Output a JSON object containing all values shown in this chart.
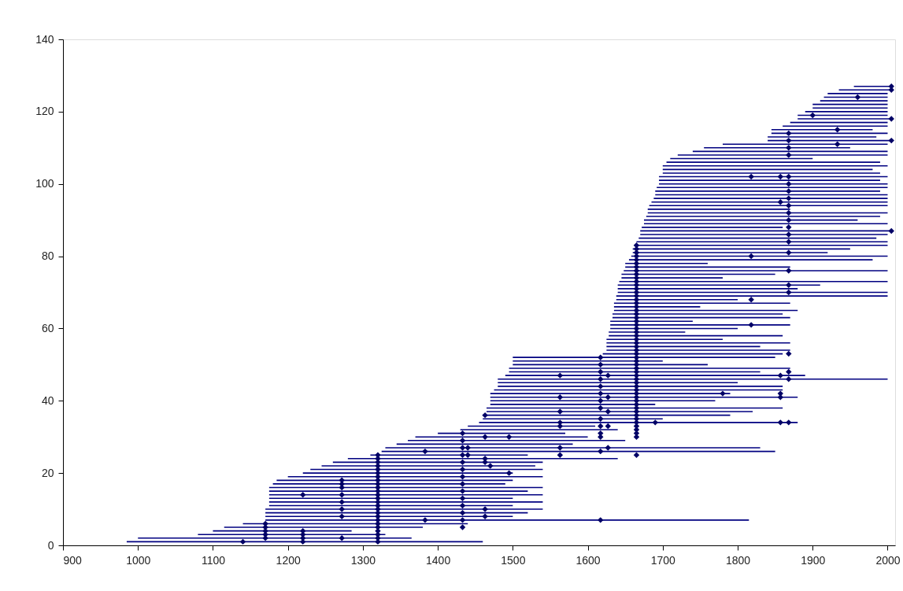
{
  "chart_data": {
    "type": "line",
    "xlim": [
      900,
      2010
    ],
    "ylim": [
      0,
      140
    ],
    "xticks": [
      900,
      1000,
      1100,
      1200,
      1300,
      1400,
      1500,
      1600,
      1700,
      1800,
      1900,
      2000
    ],
    "yticks": [
      0,
      20,
      40,
      60,
      80,
      100,
      120,
      140
    ],
    "grid": false,
    "legend": false,
    "line_style": "solid",
    "series": [
      {
        "color": "#000080",
        "x": [
          985,
          1460
        ],
        "values": [
          1,
          1
        ]
      },
      {
        "color": "#000080",
        "x": [
          1000,
          1365
        ],
        "values": [
          2,
          2
        ]
      },
      {
        "color": "#000080",
        "x": [
          1080,
          1330
        ],
        "values": [
          3,
          3
        ]
      },
      {
        "color": "#000080",
        "x": [
          1100,
          1285
        ],
        "values": [
          4,
          4
        ]
      },
      {
        "color": "#000080",
        "x": [
          1115,
          1380
        ],
        "values": [
          5,
          5
        ]
      },
      {
        "color": "#000080",
        "x": [
          1140,
          1440
        ],
        "values": [
          6,
          6
        ]
      },
      {
        "color": "#000080",
        "x": [
          1170,
          1815
        ],
        "values": [
          7,
          7
        ]
      },
      {
        "color": "#000080",
        "x": [
          1170,
          1500
        ],
        "values": [
          8,
          8
        ]
      },
      {
        "color": "#000080",
        "x": [
          1170,
          1520
        ],
        "values": [
          9,
          9
        ]
      },
      {
        "color": "#000080",
        "x": [
          1170,
          1540
        ],
        "values": [
          10,
          10
        ]
      },
      {
        "color": "#000080",
        "x": [
          1175,
          1500
        ],
        "values": [
          11,
          11
        ]
      },
      {
        "color": "#000080",
        "x": [
          1175,
          1540
        ],
        "values": [
          12,
          12
        ]
      },
      {
        "color": "#000080",
        "x": [
          1175,
          1500
        ],
        "values": [
          13,
          13
        ]
      },
      {
        "color": "#000080",
        "x": [
          1175,
          1540
        ],
        "values": [
          14,
          14
        ]
      },
      {
        "color": "#000080",
        "x": [
          1175,
          1520
        ],
        "values": [
          15,
          15
        ]
      },
      {
        "color": "#000080",
        "x": [
          1175,
          1540
        ],
        "values": [
          16,
          16
        ]
      },
      {
        "color": "#000080",
        "x": [
          1180,
          1490
        ],
        "values": [
          17,
          17
        ]
      },
      {
        "color": "#000080",
        "x": [
          1185,
          1500
        ],
        "values": [
          18,
          18
        ]
      },
      {
        "color": "#000080",
        "x": [
          1200,
          1540
        ],
        "values": [
          19,
          19
        ]
      },
      {
        "color": "#000080",
        "x": [
          1220,
          1500
        ],
        "values": [
          20,
          20
        ]
      },
      {
        "color": "#000080",
        "x": [
          1230,
          1540
        ],
        "values": [
          21,
          21
        ]
      },
      {
        "color": "#000080",
        "x": [
          1245,
          1530
        ],
        "values": [
          22,
          22
        ]
      },
      {
        "color": "#000080",
        "x": [
          1260,
          1540
        ],
        "values": [
          23,
          23
        ]
      },
      {
        "color": "#000080",
        "x": [
          1280,
          1640
        ],
        "values": [
          24,
          24
        ]
      },
      {
        "color": "#000080",
        "x": [
          1310,
          1520
        ],
        "values": [
          25,
          25
        ]
      },
      {
        "color": "#000080",
        "x": [
          1325,
          1850
        ],
        "values": [
          26,
          26
        ]
      },
      {
        "color": "#000080",
        "x": [
          1330,
          1830
        ],
        "values": [
          27,
          27
        ]
      },
      {
        "color": "#000080",
        "x": [
          1345,
          1580
        ],
        "values": [
          28,
          28
        ]
      },
      {
        "color": "#000080",
        "x": [
          1360,
          1650
        ],
        "values": [
          29,
          29
        ]
      },
      {
        "color": "#000080",
        "x": [
          1370,
          1600
        ],
        "values": [
          30,
          30
        ]
      },
      {
        "color": "#000080",
        "x": [
          1400,
          1570
        ],
        "values": [
          31,
          31
        ]
      },
      {
        "color": "#000080",
        "x": [
          1430,
          1640
        ],
        "values": [
          32,
          32
        ]
      },
      {
        "color": "#000080",
        "x": [
          1440,
          1610
        ],
        "values": [
          33,
          33
        ]
      },
      {
        "color": "#000080",
        "x": [
          1455,
          1880
        ],
        "values": [
          34,
          34
        ]
      },
      {
        "color": "#000080",
        "x": [
          1460,
          1700
        ],
        "values": [
          35,
          35
        ]
      },
      {
        "color": "#000080",
        "x": [
          1460,
          1790
        ],
        "values": [
          36,
          36
        ]
      },
      {
        "color": "#000080",
        "x": [
          1465,
          1820
        ],
        "values": [
          37,
          37
        ]
      },
      {
        "color": "#000080",
        "x": [
          1465,
          1860
        ],
        "values": [
          38,
          38
        ]
      },
      {
        "color": "#000080",
        "x": [
          1470,
          1690
        ],
        "values": [
          39,
          39
        ]
      },
      {
        "color": "#000080",
        "x": [
          1470,
          1770
        ],
        "values": [
          40,
          40
        ]
      },
      {
        "color": "#000080",
        "x": [
          1470,
          1880
        ],
        "values": [
          41,
          41
        ]
      },
      {
        "color": "#000080",
        "x": [
          1470,
          1790
        ],
        "values": [
          42,
          42
        ]
      },
      {
        "color": "#000080",
        "x": [
          1475,
          1860
        ],
        "values": [
          43,
          43
        ]
      },
      {
        "color": "#000080",
        "x": [
          1480,
          1860
        ],
        "values": [
          44,
          44
        ]
      },
      {
        "color": "#000080",
        "x": [
          1480,
          1800
        ],
        "values": [
          45,
          45
        ]
      },
      {
        "color": "#000080",
        "x": [
          1480,
          2000
        ],
        "values": [
          46,
          46
        ]
      },
      {
        "color": "#000080",
        "x": [
          1490,
          1890
        ],
        "values": [
          47,
          47
        ]
      },
      {
        "color": "#000080",
        "x": [
          1495,
          1830
        ],
        "values": [
          48,
          48
        ]
      },
      {
        "color": "#000080",
        "x": [
          1495,
          1870
        ],
        "values": [
          49,
          49
        ]
      },
      {
        "color": "#000080",
        "x": [
          1500,
          1760
        ],
        "values": [
          50,
          50
        ]
      },
      {
        "color": "#000080",
        "x": [
          1500,
          1700
        ],
        "values": [
          51,
          51
        ]
      },
      {
        "color": "#000080",
        "x": [
          1500,
          1850
        ],
        "values": [
          52,
          52
        ]
      },
      {
        "color": "#000080",
        "x": [
          1620,
          1860
        ],
        "values": [
          53,
          53
        ]
      },
      {
        "color": "#000080",
        "x": [
          1625,
          1870
        ],
        "values": [
          54,
          54
        ]
      },
      {
        "color": "#000080",
        "x": [
          1625,
          1830
        ],
        "values": [
          55,
          55
        ]
      },
      {
        "color": "#000080",
        "x": [
          1625,
          1870
        ],
        "values": [
          56,
          56
        ]
      },
      {
        "color": "#000080",
        "x": [
          1625,
          1780
        ],
        "values": [
          57,
          57
        ]
      },
      {
        "color": "#000080",
        "x": [
          1628,
          1860
        ],
        "values": [
          58,
          58
        ]
      },
      {
        "color": "#000080",
        "x": [
          1628,
          1730
        ],
        "values": [
          59,
          59
        ]
      },
      {
        "color": "#000080",
        "x": [
          1630,
          1800
        ],
        "values": [
          60,
          60
        ]
      },
      {
        "color": "#000080",
        "x": [
          1630,
          1870
        ],
        "values": [
          61,
          61
        ]
      },
      {
        "color": "#000080",
        "x": [
          1630,
          1740
        ],
        "values": [
          62,
          62
        ]
      },
      {
        "color": "#000080",
        "x": [
          1633,
          1870
        ],
        "values": [
          63,
          63
        ]
      },
      {
        "color": "#000080",
        "x": [
          1633,
          1860
        ],
        "values": [
          64,
          64
        ]
      },
      {
        "color": "#000080",
        "x": [
          1635,
          1880
        ],
        "values": [
          65,
          65
        ]
      },
      {
        "color": "#000080",
        "x": [
          1635,
          1750
        ],
        "values": [
          66,
          66
        ]
      },
      {
        "color": "#000080",
        "x": [
          1635,
          1870
        ],
        "values": [
          67,
          67
        ]
      },
      {
        "color": "#000080",
        "x": [
          1638,
          1800
        ],
        "values": [
          68,
          68
        ]
      },
      {
        "color": "#000080",
        "x": [
          1638,
          2000
        ],
        "values": [
          69,
          69
        ]
      },
      {
        "color": "#000080",
        "x": [
          1640,
          2000
        ],
        "values": [
          70,
          70
        ]
      },
      {
        "color": "#000080",
        "x": [
          1640,
          1880
        ],
        "values": [
          71,
          71
        ]
      },
      {
        "color": "#000080",
        "x": [
          1640,
          1910
        ],
        "values": [
          72,
          72
        ]
      },
      {
        "color": "#000080",
        "x": [
          1642,
          2000
        ],
        "values": [
          73,
          73
        ]
      },
      {
        "color": "#000080",
        "x": [
          1645,
          1780
        ],
        "values": [
          74,
          74
        ]
      },
      {
        "color": "#000080",
        "x": [
          1645,
          1850
        ],
        "values": [
          75,
          75
        ]
      },
      {
        "color": "#000080",
        "x": [
          1648,
          2000
        ],
        "values": [
          76,
          76
        ]
      },
      {
        "color": "#000080",
        "x": [
          1650,
          1870
        ],
        "values": [
          77,
          77
        ]
      },
      {
        "color": "#000080",
        "x": [
          1650,
          1760
        ],
        "values": [
          78,
          78
        ]
      },
      {
        "color": "#000080",
        "x": [
          1655,
          1980
        ],
        "values": [
          79,
          79
        ]
      },
      {
        "color": "#000080",
        "x": [
          1658,
          2000
        ],
        "values": [
          80,
          80
        ]
      },
      {
        "color": "#000080",
        "x": [
          1660,
          1920
        ],
        "values": [
          81,
          81
        ]
      },
      {
        "color": "#000080",
        "x": [
          1660,
          1950
        ],
        "values": [
          82,
          82
        ]
      },
      {
        "color": "#000080",
        "x": [
          1662,
          2000
        ],
        "values": [
          83,
          83
        ]
      },
      {
        "color": "#000080",
        "x": [
          1665,
          2000
        ],
        "values": [
          84,
          84
        ]
      },
      {
        "color": "#000080",
        "x": [
          1668,
          1985
        ],
        "values": [
          85,
          85
        ]
      },
      {
        "color": "#000080",
        "x": [
          1670,
          2000
        ],
        "values": [
          86,
          86
        ]
      },
      {
        "color": "#000080",
        "x": [
          1670,
          2005
        ],
        "values": [
          87,
          87
        ]
      },
      {
        "color": "#000080",
        "x": [
          1672,
          1860
        ],
        "values": [
          88,
          88
        ]
      },
      {
        "color": "#000080",
        "x": [
          1675,
          2000
        ],
        "values": [
          89,
          89
        ]
      },
      {
        "color": "#000080",
        "x": [
          1675,
          1960
        ],
        "values": [
          90,
          90
        ]
      },
      {
        "color": "#000080",
        "x": [
          1678,
          1990
        ],
        "values": [
          91,
          91
        ]
      },
      {
        "color": "#000080",
        "x": [
          1680,
          2000
        ],
        "values": [
          92,
          92
        ]
      },
      {
        "color": "#000080",
        "x": [
          1680,
          1870
        ],
        "values": [
          93,
          93
        ]
      },
      {
        "color": "#000080",
        "x": [
          1682,
          2000
        ],
        "values": [
          94,
          94
        ]
      },
      {
        "color": "#000080",
        "x": [
          1685,
          2000
        ],
        "values": [
          95,
          95
        ]
      },
      {
        "color": "#000080",
        "x": [
          1688,
          2000
        ],
        "values": [
          96,
          96
        ]
      },
      {
        "color": "#000080",
        "x": [
          1690,
          2000
        ],
        "values": [
          97,
          97
        ]
      },
      {
        "color": "#000080",
        "x": [
          1690,
          1990
        ],
        "values": [
          98,
          98
        ]
      },
      {
        "color": "#000080",
        "x": [
          1692,
          2000
        ],
        "values": [
          99,
          99
        ]
      },
      {
        "color": "#000080",
        "x": [
          1695,
          2000
        ],
        "values": [
          100,
          100
        ]
      },
      {
        "color": "#000080",
        "x": [
          1695,
          1990
        ],
        "values": [
          101,
          101
        ]
      },
      {
        "color": "#000080",
        "x": [
          1695,
          2000
        ],
        "values": [
          102,
          102
        ]
      },
      {
        "color": "#000080",
        "x": [
          1700,
          1990
        ],
        "values": [
          103,
          103
        ]
      },
      {
        "color": "#000080",
        "x": [
          1700,
          1980
        ],
        "values": [
          104,
          104
        ]
      },
      {
        "color": "#000080",
        "x": [
          1700,
          2000
        ],
        "values": [
          105,
          105
        ]
      },
      {
        "color": "#000080",
        "x": [
          1705,
          1990
        ],
        "values": [
          106,
          106
        ]
      },
      {
        "color": "#000080",
        "x": [
          1710,
          1900
        ],
        "values": [
          107,
          107
        ]
      },
      {
        "color": "#000080",
        "x": [
          1720,
          2000
        ],
        "values": [
          108,
          108
        ]
      },
      {
        "color": "#000080",
        "x": [
          1740,
          2000
        ],
        "values": [
          109,
          109
        ]
      },
      {
        "color": "#000080",
        "x": [
          1755,
          1950
        ],
        "values": [
          110,
          110
        ]
      },
      {
        "color": "#000080",
        "x": [
          1780,
          2000
        ],
        "values": [
          111,
          111
        ]
      },
      {
        "color": "#000080",
        "x": [
          1840,
          2005
        ],
        "values": [
          112,
          112
        ]
      },
      {
        "color": "#000080",
        "x": [
          1840,
          1985
        ],
        "values": [
          113,
          113
        ]
      },
      {
        "color": "#000080",
        "x": [
          1845,
          2000
        ],
        "values": [
          114,
          114
        ]
      },
      {
        "color": "#000080",
        "x": [
          1845,
          1980
        ],
        "values": [
          115,
          115
        ]
      },
      {
        "color": "#000080",
        "x": [
          1860,
          2000
        ],
        "values": [
          116,
          116
        ]
      },
      {
        "color": "#000080",
        "x": [
          1870,
          2000
        ],
        "values": [
          117,
          117
        ]
      },
      {
        "color": "#000080",
        "x": [
          1880,
          2005
        ],
        "values": [
          118,
          118
        ]
      },
      {
        "color": "#000080",
        "x": [
          1880,
          2000
        ],
        "values": [
          119,
          119
        ]
      },
      {
        "color": "#000080",
        "x": [
          1890,
          2000
        ],
        "values": [
          120,
          120
        ]
      },
      {
        "color": "#000080",
        "x": [
          1900,
          2000
        ],
        "values": [
          121,
          121
        ]
      },
      {
        "color": "#000080",
        "x": [
          1900,
          2000
        ],
        "values": [
          122,
          122
        ]
      },
      {
        "color": "#000080",
        "x": [
          1910,
          2000
        ],
        "values": [
          123,
          123
        ]
      },
      {
        "color": "#000080",
        "x": [
          1915,
          2000
        ],
        "values": [
          124,
          124
        ]
      },
      {
        "color": "#000080",
        "x": [
          1920,
          2000
        ],
        "values": [
          125,
          125
        ]
      },
      {
        "color": "#000080",
        "x": [
          1935,
          2005
        ],
        "values": [
          126,
          126
        ]
      },
      {
        "color": "#000080",
        "x": [
          1955,
          2005
        ],
        "values": [
          127,
          127
        ]
      },
      {
        "type": "scatter",
        "marker": "diamond",
        "color": "#000066",
        "x": [
          1140,
          1170,
          1170,
          1170,
          1170,
          1170,
          1220,
          1220,
          1220,
          1220,
          1220,
          1272,
          1272,
          1272,
          1272,
          1272,
          1272,
          1272,
          1272,
          1320,
          1320,
          1320,
          1320,
          1320,
          1320,
          1320,
          1320,
          1320,
          1320,
          1320,
          1320,
          1320,
          1320,
          1320,
          1320,
          1320,
          1320,
          1320,
          1320,
          1320,
          1320,
          1320,
          1320,
          1320,
          1383,
          1383,
          1433,
          1433,
          1433,
          1433,
          1433,
          1433,
          1433,
          1433,
          1433,
          1433,
          1433,
          1433,
          1433,
          1433,
          1440,
          1440,
          1463,
          1463,
          1463,
          1463,
          1463,
          1463,
          1470,
          1495,
          1495,
          1563,
          1563,
          1563,
          1563,
          1563,
          1563,
          1563,
          1617,
          1617,
          1617,
          1617,
          1617,
          1617,
          1617,
          1617,
          1617,
          1617,
          1617,
          1617,
          1617,
          1617,
          1627,
          1627,
          1627,
          1627,
          1627,
          1665,
          1665,
          1665,
          1665,
          1665,
          1665,
          1665,
          1665,
          1665,
          1665,
          1665,
          1665,
          1665,
          1665,
          1665,
          1665,
          1665,
          1665,
          1665,
          1665,
          1665,
          1665,
          1665,
          1665,
          1665,
          1665,
          1665,
          1665,
          1665,
          1665,
          1665,
          1665,
          1665,
          1665,
          1665,
          1665,
          1665,
          1665,
          1665,
          1665,
          1665,
          1665,
          1665,
          1665,
          1665,
          1665,
          1665,
          1665,
          1665,
          1665,
          1665,
          1665,
          1665,
          1665,
          1665,
          1690,
          1780,
          1818,
          1818,
          1818,
          1818,
          1857,
          1857,
          1857,
          1857,
          1857,
          1857,
          1868,
          1868,
          1868,
          1868,
          1868,
          1868,
          1868,
          1868,
          1868,
          1868,
          1868,
          1868,
          1868,
          1868,
          1868,
          1868,
          1868,
          1868,
          1868,
          1868,
          1868,
          1868,
          1900,
          1933,
          1933,
          1960,
          2005,
          2005,
          2005,
          2005,
          2005
        ],
        "values": [
          1,
          2,
          3,
          4,
          5,
          6,
          1,
          2,
          3,
          4,
          14,
          2,
          8,
          10,
          12,
          14,
          16,
          17,
          18,
          1,
          2,
          3,
          4,
          5,
          6,
          7,
          8,
          9,
          10,
          11,
          12,
          13,
          14,
          15,
          16,
          17,
          18,
          19,
          20,
          21,
          22,
          23,
          24,
          25,
          7,
          26,
          5,
          7,
          9,
          11,
          13,
          15,
          17,
          19,
          21,
          23,
          25,
          27,
          29,
          31,
          25,
          27,
          8,
          10,
          23,
          24,
          30,
          36,
          22,
          20,
          30,
          25,
          27,
          33,
          34,
          37,
          41,
          47,
          7,
          26,
          30,
          31,
          33,
          35,
          38,
          40,
          42,
          44,
          46,
          48,
          50,
          52,
          27,
          33,
          37,
          41,
          47,
          25,
          30,
          31,
          32,
          33,
          34,
          35,
          36,
          37,
          38,
          39,
          40,
          41,
          42,
          43,
          44,
          45,
          46,
          47,
          48,
          49,
          50,
          51,
          52,
          53,
          54,
          55,
          56,
          57,
          58,
          59,
          60,
          61,
          62,
          63,
          64,
          65,
          66,
          67,
          68,
          69,
          70,
          71,
          72,
          73,
          74,
          75,
          76,
          77,
          78,
          79,
          80,
          81,
          82,
          83,
          34,
          42,
          61,
          68,
          80,
          102,
          34,
          41,
          42,
          47,
          95,
          102,
          34,
          46,
          48,
          53,
          70,
          72,
          76,
          81,
          84,
          86,
          88,
          90,
          92,
          94,
          96,
          98,
          100,
          102,
          108,
          110,
          112,
          114,
          119,
          111,
          115,
          124,
          87,
          112,
          118,
          126,
          127
        ]
      }
    ]
  }
}
